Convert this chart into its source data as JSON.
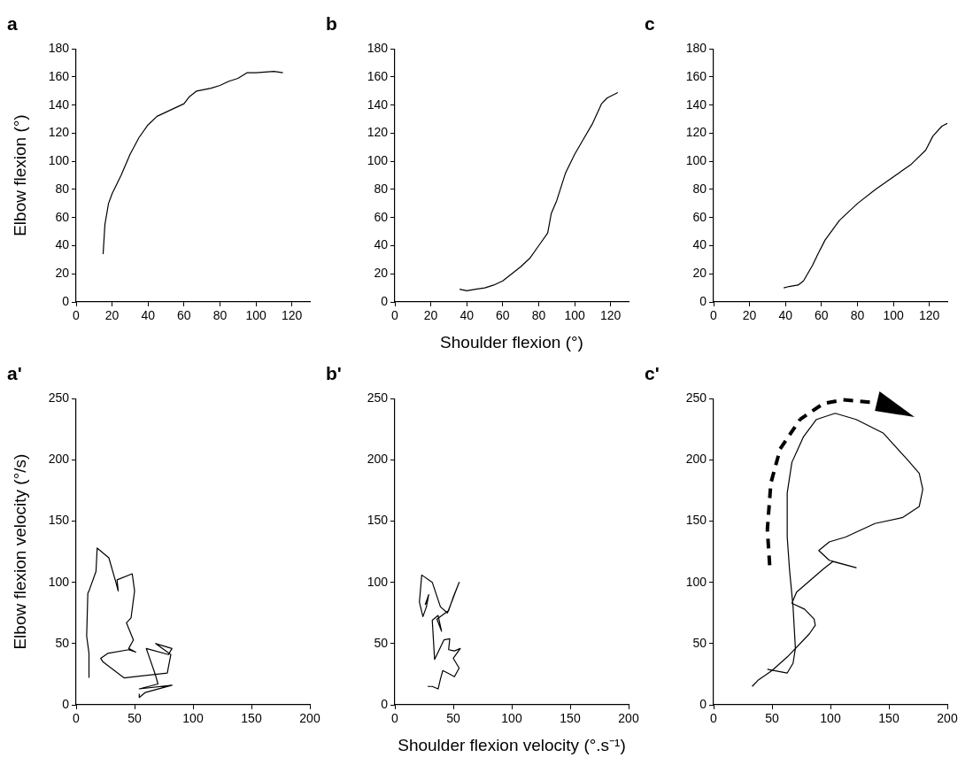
{
  "chart_data": [
    {
      "type": "line",
      "title": "a",
      "ylabel": "Elbow flexion (°)",
      "xlim": [
        0,
        130
      ],
      "xticks": [
        0,
        20,
        40,
        60,
        80,
        100,
        120
      ],
      "ylim": [
        0,
        180
      ],
      "yticks": [
        0,
        20,
        40,
        60,
        80,
        100,
        120,
        140,
        160,
        180
      ],
      "grid": false,
      "legend": false,
      "marker": "none",
      "line_style": "solid",
      "series": [
        {
          "color": "#000000",
          "x": [
            15,
            16,
            18,
            20,
            25,
            30,
            35,
            40,
            45,
            50,
            55,
            60,
            63,
            67,
            75,
            80,
            85,
            90,
            95,
            100,
            110,
            115
          ],
          "values": [
            34,
            55,
            70,
            77,
            90,
            105,
            117,
            126,
            132,
            135,
            138,
            141,
            146,
            150,
            152,
            154,
            157,
            159,
            163,
            163,
            164,
            163
          ]
        }
      ]
    },
    {
      "type": "line",
      "title": "b",
      "xlabel": "Shoulder flexion (°)",
      "xlim": [
        0,
        130
      ],
      "xticks": [
        0,
        20,
        40,
        60,
        80,
        100,
        120
      ],
      "ylim": [
        0,
        180
      ],
      "yticks": [
        0,
        20,
        40,
        60,
        80,
        100,
        120,
        140,
        160,
        180
      ],
      "grid": false,
      "legend": false,
      "marker": "none",
      "line_style": "solid",
      "series": [
        {
          "color": "#000000",
          "x": [
            36,
            40,
            45,
            50,
            55,
            60,
            65,
            70,
            75,
            80,
            85,
            87,
            90,
            95,
            100,
            105,
            110,
            115,
            118,
            124
          ],
          "values": [
            9,
            8,
            9,
            10,
            12,
            15,
            20,
            25,
            31,
            40,
            49,
            63,
            72,
            92,
            105,
            116,
            127,
            141,
            145,
            149
          ]
        }
      ]
    },
    {
      "type": "line",
      "title": "c",
      "xlim": [
        0,
        130
      ],
      "xticks": [
        0,
        20,
        40,
        60,
        80,
        100,
        120
      ],
      "ylim": [
        0,
        180
      ],
      "yticks": [
        0,
        20,
        40,
        60,
        80,
        100,
        120,
        140,
        160,
        180
      ],
      "grid": false,
      "legend": false,
      "marker": "none",
      "line_style": "solid",
      "series": [
        {
          "color": "#000000",
          "x": [
            39,
            42,
            47,
            50,
            55,
            58,
            62,
            70,
            80,
            90,
            100,
            110,
            118,
            122,
            127,
            130
          ],
          "values": [
            10,
            11,
            12,
            15,
            26,
            34,
            44,
            58,
            70,
            80,
            89,
            98,
            108,
            118,
            125,
            127
          ]
        }
      ]
    },
    {
      "type": "line",
      "title": "a'",
      "ylabel": "Elbow flexion velocity (°/s)",
      "xlim": [
        0,
        200
      ],
      "xticks": [
        0,
        50,
        100,
        150,
        200
      ],
      "ylim": [
        0,
        250
      ],
      "yticks": [
        0,
        50,
        100,
        150,
        200,
        250
      ],
      "grid": false,
      "legend": false,
      "marker": "none",
      "line_style": "solid",
      "series": [
        {
          "color": "#000000",
          "x": [
            11,
            11,
            9,
            10,
            11,
            17,
            18,
            28,
            34,
            36,
            35,
            48,
            50,
            47,
            43,
            49,
            45,
            51,
            45,
            27,
            21,
            23,
            41,
            78,
            81,
            68,
            82,
            79,
            60,
            68,
            70,
            54,
            82,
            59,
            54,
            54
          ],
          "values": [
            22,
            42,
            56,
            91,
            93,
            109,
            128,
            120,
            100,
            93,
            102,
            107,
            93,
            71,
            67,
            53,
            46,
            43,
            45,
            42,
            38,
            35,
            22,
            26,
            41,
            50,
            46,
            41,
            46,
            24,
            17,
            13,
            16,
            10,
            6,
            9
          ]
        }
      ]
    },
    {
      "type": "line",
      "title": "b'",
      "xlabel": "Shoulder flexion velocity (°.s⁻¹)",
      "xlim": [
        0,
        200
      ],
      "xticks": [
        0,
        50,
        100,
        150,
        200
      ],
      "ylim": [
        0,
        250
      ],
      "yticks": [
        0,
        50,
        100,
        150,
        200,
        250
      ],
      "grid": false,
      "legend": false,
      "marker": "none",
      "line_style": "solid",
      "series": [
        {
          "color": "#000000",
          "x": [
            28,
            32,
            37,
            39,
            41,
            51,
            55,
            50,
            56,
            51,
            46,
            47,
            42,
            38,
            34,
            32,
            37,
            40,
            36,
            46,
            50,
            55,
            53,
            45,
            39,
            32,
            23,
            21,
            24,
            27,
            29,
            26,
            28
          ],
          "values": [
            15,
            15,
            13,
            21,
            28,
            23,
            30,
            38,
            46,
            44,
            45,
            54,
            53,
            45,
            37,
            69,
            73,
            60,
            70,
            77,
            88,
            100,
            95,
            75,
            80,
            100,
            106,
            84,
            72,
            80,
            90,
            82,
            85
          ]
        }
      ]
    },
    {
      "type": "line",
      "title": "c'",
      "xlim": [
        0,
        200
      ],
      "xticks": [
        0,
        50,
        100,
        150,
        200
      ],
      "ylim": [
        0,
        250
      ],
      "yticks": [
        0,
        50,
        100,
        150,
        200,
        250
      ],
      "grid": false,
      "legend": false,
      "marker": "none",
      "line_style": "solid",
      "series": [
        {
          "color": "#000000",
          "x": [
            46,
            57,
            63,
            68,
            70,
            68,
            65,
            63,
            63,
            67,
            77,
            88,
            104,
            122,
            145,
            166,
            176,
            179,
            176,
            162,
            138,
            113,
            99,
            90,
            99,
            122,
            102,
            94,
            71,
            67,
            78,
            86,
            87,
            82,
            63,
            50,
            38,
            33
          ],
          "values": [
            29,
            27,
            26,
            34,
            46,
            80,
            110,
            137,
            173,
            198,
            219,
            233,
            238,
            233,
            222,
            200,
            189,
            176,
            162,
            153,
            148,
            137,
            133,
            126,
            118,
            112,
            117,
            111,
            92,
            83,
            78,
            70,
            65,
            58,
            39,
            28,
            20,
            15
          ]
        }
      ]
    }
  ]
}
